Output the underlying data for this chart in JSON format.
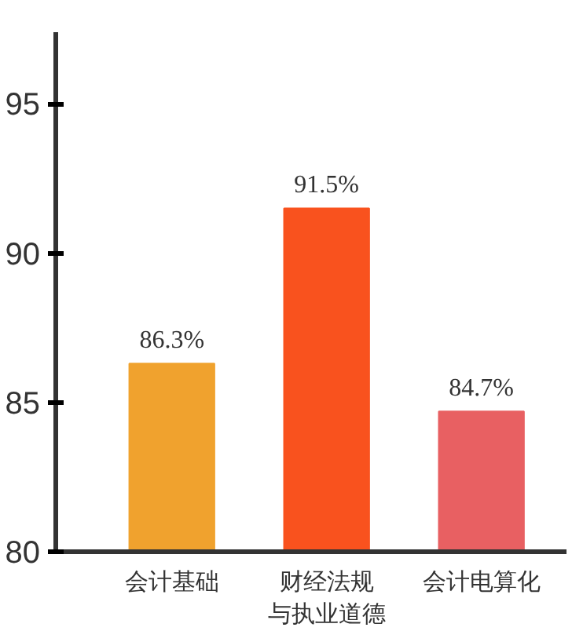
{
  "chart_data": {
    "type": "bar",
    "categories": [
      "会计基础",
      "财经法规与执业道德",
      "会计电算化"
    ],
    "values": [
      86.3,
      91.5,
      84.7
    ],
    "colors": [
      "#f0a22e",
      "#f9521e",
      "#e86062"
    ],
    "value_labels": [
      "86.3%",
      "91.5%",
      "84.7%"
    ],
    "ylim": [
      80,
      97.4
    ],
    "yticks": [
      80,
      85,
      90,
      95
    ],
    "grid": false
  }
}
